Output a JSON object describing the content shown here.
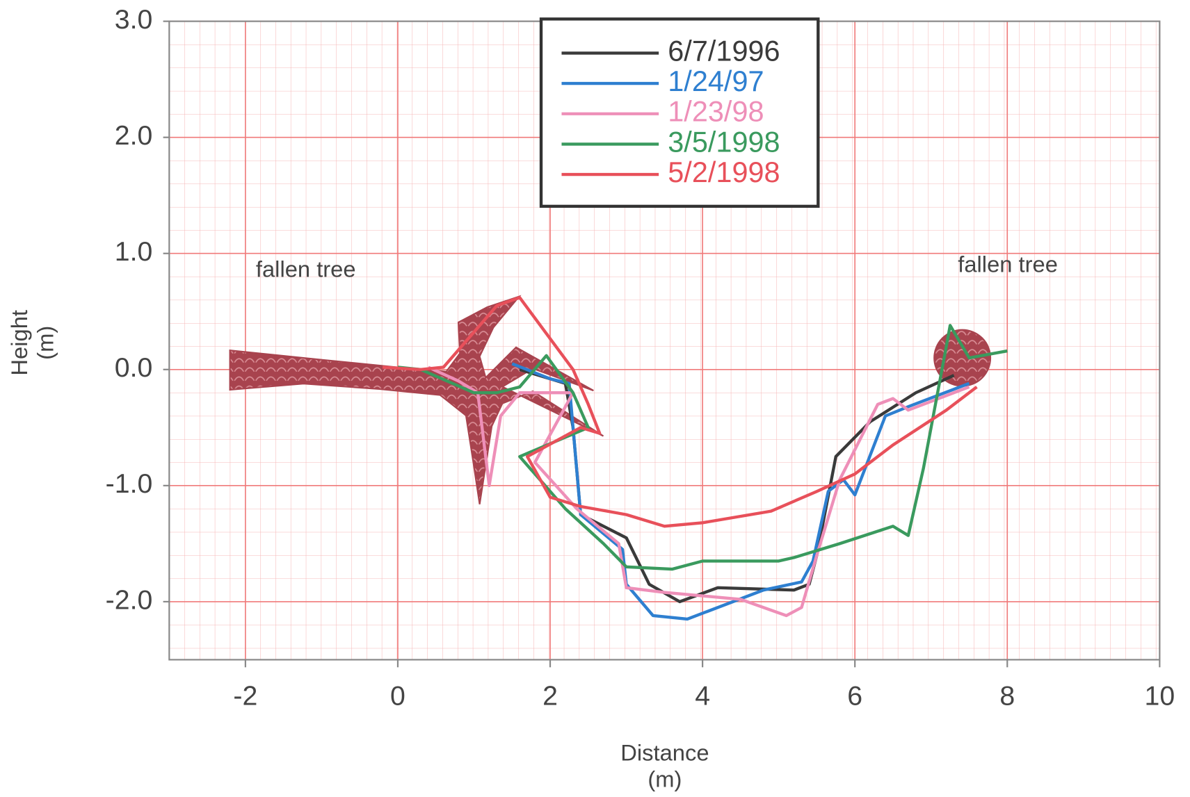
{
  "chart_data": {
    "type": "line",
    "xlim": [
      -3,
      10
    ],
    "xticks": [
      -2,
      0,
      2,
      4,
      6,
      8,
      10
    ],
    "ylim": [
      -2.5,
      3
    ],
    "yticks": [
      {
        "value": -2,
        "label": "-2.0"
      },
      {
        "value": -1,
        "label": "-1.0"
      },
      {
        "value": 0,
        "label": "0.0"
      },
      {
        "value": 1,
        "label": "1.0"
      },
      {
        "value": 2,
        "label": "2.0"
      },
      {
        "value": 3,
        "label": "3.0"
      }
    ],
    "xlabel": [
      "Distance",
      "(m)"
    ],
    "ylabel": [
      "Height",
      "(m)"
    ],
    "annotations": [
      "fallen tree",
      "fallen tree"
    ],
    "grid": true,
    "legend": "top",
    "series": [
      {
        "name": "6/7/1996",
        "color": "#3a3a3a",
        "x": [
          1.6,
          2.2,
          2.3,
          2.4,
          3.0,
          3.3,
          3.7,
          4.2,
          5.2,
          5.4,
          5.5,
          5.75,
          6.2,
          6.8,
          7.3
        ],
        "values": [
          0.0,
          -0.12,
          -0.5,
          -1.25,
          -1.45,
          -1.85,
          -2.0,
          -1.88,
          -1.9,
          -1.85,
          -1.6,
          -0.75,
          -0.45,
          -0.2,
          -0.05
        ]
      },
      {
        "name": "1/24/97",
        "color": "#2e7fd0",
        "x": [
          1.5,
          2.0,
          2.25,
          2.4,
          2.95,
          3.0,
          3.35,
          3.8,
          4.8,
          5.3,
          5.45,
          5.65,
          5.85,
          6.0,
          6.4,
          6.7,
          7.5
        ],
        "values": [
          0.05,
          -0.08,
          -0.12,
          -1.25,
          -1.55,
          -1.85,
          -2.12,
          -2.15,
          -1.9,
          -1.83,
          -1.65,
          -1.05,
          -0.95,
          -1.08,
          -0.4,
          -0.32,
          -0.12
        ]
      },
      {
        "name": "1/23/98",
        "color": "#ee8fb8",
        "x": [
          0.4,
          0.8,
          1.05,
          1.2,
          1.35,
          1.6,
          2.3,
          1.8,
          2.35,
          2.9,
          3.0,
          3.5,
          4.5,
          5.1,
          5.3,
          5.5,
          5.8,
          6.3,
          6.5,
          6.7,
          7.5
        ],
        "values": [
          0.02,
          -0.1,
          -0.2,
          -1.0,
          -0.4,
          -0.2,
          -0.2,
          -0.8,
          -1.2,
          -1.5,
          -1.88,
          -1.92,
          -1.98,
          -2.12,
          -2.05,
          -1.6,
          -0.95,
          -0.3,
          -0.25,
          -0.35,
          -0.15
        ]
      },
      {
        "name": "3/5/1998",
        "color": "#3a9a5e",
        "x": [
          0.0,
          0.3,
          1.0,
          1.3,
          1.6,
          1.95,
          2.3,
          2.5,
          1.6,
          2.2,
          2.7,
          3.0,
          3.6,
          4.0,
          5.0,
          5.2,
          5.8,
          6.5,
          6.7,
          6.9,
          7.2,
          7.25,
          7.5,
          8.0
        ],
        "values": [
          0.02,
          0.0,
          -0.2,
          -0.2,
          -0.15,
          0.12,
          -0.2,
          -0.5,
          -0.75,
          -1.2,
          -1.5,
          -1.7,
          -1.72,
          -1.65,
          -1.65,
          -1.62,
          -1.5,
          -1.35,
          -1.43,
          -0.85,
          0.2,
          0.38,
          0.1,
          0.16
        ]
      },
      {
        "name": "5/2/1998",
        "color": "#e8505a",
        "x": [
          -0.2,
          0.3,
          0.6,
          1.3,
          1.6,
          2.3,
          2.5,
          2.65,
          2.4,
          1.7,
          2.0,
          2.4,
          3.0,
          3.5,
          4.0,
          4.9,
          5.5,
          6.0,
          6.5,
          7.2,
          7.6
        ],
        "values": [
          0.02,
          0.0,
          0.02,
          0.55,
          0.62,
          0.0,
          -0.3,
          -0.55,
          -0.5,
          -0.75,
          -1.1,
          -1.18,
          -1.25,
          -1.35,
          -1.32,
          -1.22,
          -1.05,
          -0.9,
          -0.65,
          -0.35,
          -0.15
        ]
      }
    ]
  }
}
